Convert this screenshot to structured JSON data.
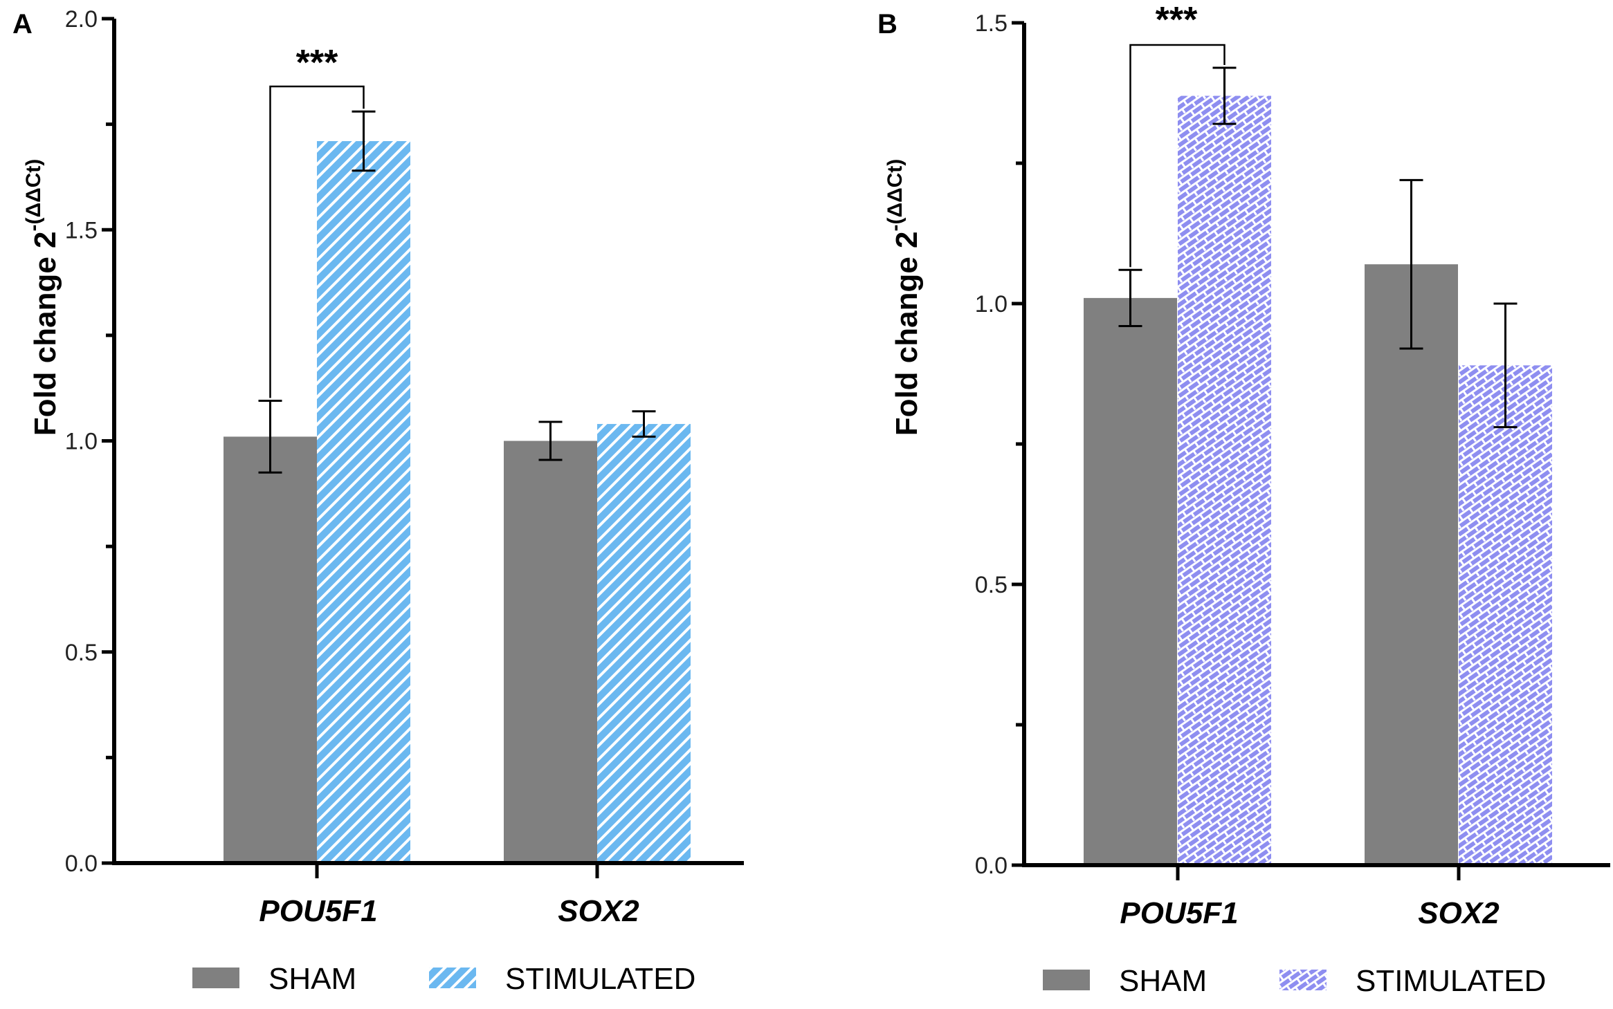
{
  "chart_data": [
    {
      "type": "bar",
      "panel_label": "A",
      "categories": [
        "POU5F1",
        "SOX2"
      ],
      "series": [
        {
          "name": "SHAM",
          "color": "#808080",
          "pattern": "solid",
          "values": [
            1.01,
            1.0
          ],
          "error": [
            0.085,
            0.045
          ]
        },
        {
          "name": "STIMULATED",
          "color": "#6BB8F0",
          "pattern": "diagonal-stripes",
          "values": [
            1.71,
            1.04
          ],
          "error": [
            0.07,
            0.03
          ]
        }
      ],
      "ylabel": "Fold change 2",
      "ylabel_sup": "-(ΔΔCt)",
      "ylim": [
        0,
        2.0
      ],
      "yticks": [
        0.0,
        0.5,
        1.0,
        1.5,
        2.0
      ],
      "ytick_labels": [
        "0.0",
        "0.5",
        "1.0",
        "1.5",
        "2.0"
      ],
      "minor_ticks": [
        0.25,
        0.75,
        1.25,
        1.75
      ],
      "significance": {
        "label": "***",
        "category": "POU5F1"
      },
      "legend": [
        "SHAM",
        "STIMULATED"
      ]
    },
    {
      "type": "bar",
      "panel_label": "B",
      "categories": [
        "POU5F1",
        "SOX2"
      ],
      "series": [
        {
          "name": "SHAM",
          "color": "#808080",
          "pattern": "solid",
          "values": [
            1.01,
            1.07
          ],
          "error": [
            0.05,
            0.15
          ]
        },
        {
          "name": "STIMULATED",
          "color": "#8E8EF0",
          "pattern": "cross-hatch",
          "values": [
            1.37,
            0.89
          ],
          "error": [
            0.05,
            0.11
          ]
        }
      ],
      "ylabel": "Fold change 2",
      "ylabel_sup": "-(ΔΔCt)",
      "ylim": [
        0,
        1.5
      ],
      "yticks": [
        0.0,
        0.5,
        1.0,
        1.5
      ],
      "ytick_labels": [
        "0.0",
        "0.5",
        "1.0",
        "1.5"
      ],
      "minor_ticks": [
        0.25,
        0.75,
        1.25
      ],
      "significance": {
        "label": "***",
        "category": "POU5F1"
      },
      "legend": [
        "SHAM",
        "STIMULATED"
      ]
    }
  ]
}
